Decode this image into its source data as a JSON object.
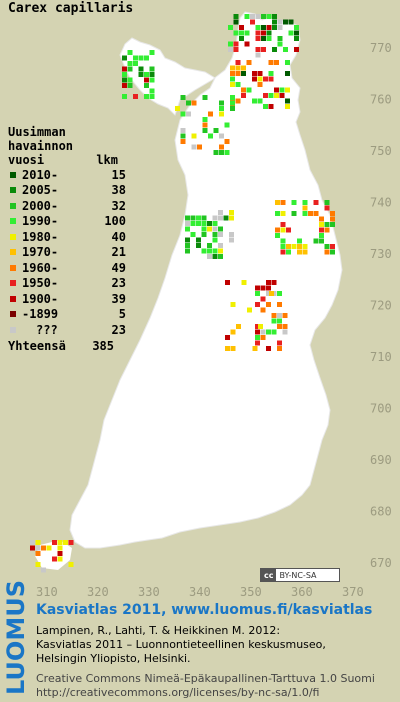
{
  "species": "Carex capillaris",
  "legend": {
    "heading_line1": "Uusimman",
    "heading_line2": "havainnon",
    "heading_col1": "vuosi",
    "heading_col2": "lkm",
    "rows": [
      {
        "label": "2010-",
        "count": "15",
        "color": "#005a00"
      },
      {
        "label": "2005-",
        "count": "38",
        "color": "#0a8a0a"
      },
      {
        "label": "2000-",
        "count": "32",
        "color": "#22c422"
      },
      {
        "label": "1990-",
        "count": "100",
        "color": "#33ee33"
      },
      {
        "label": "1980-",
        "count": "40",
        "color": "#f0f000"
      },
      {
        "label": "1970-",
        "count": "21",
        "color": "#ffc000"
      },
      {
        "label": "1960-",
        "count": "49",
        "color": "#ff7a00"
      },
      {
        "label": "1950-",
        "count": "23",
        "color": "#e82020"
      },
      {
        "label": "1900-",
        "count": "39",
        "color": "#c00000"
      },
      {
        "label": "-1899",
        "count": "5",
        "color": "#7a0000"
      },
      {
        "label": "???",
        "count": "23",
        "color": "#c8c8c8"
      }
    ],
    "total_label": "Yhteensä",
    "total_count": "385"
  },
  "axes": {
    "y_ticks": [
      "770",
      "760",
      "750",
      "740",
      "730",
      "720",
      "710",
      "700",
      "690",
      "680",
      "670"
    ],
    "x_ticks": [
      "310",
      "320",
      "330",
      "340",
      "350",
      "360",
      "370"
    ]
  },
  "license_badge": {
    "cc": "cc",
    "text": "BY-NC-SA"
  },
  "footer": {
    "logo": "LUOMUS",
    "title": "Kasviatlas 2011, www.luomus.fi/kasviatlas",
    "ref_line1": "Lampinen, R., Lahti, T. & Heikkinen M. 2012:",
    "ref_line2": "Kasviatlas 2011 – Luonnontieteellinen keskusmuseo,",
    "ref_line3": "Helsingin Yliopisto, Helsinki.",
    "license_line1": "Creative Commons Nimeä-Epäkaupallinen-Tarttuva 1.0 Suomi",
    "license_line2": "http://creativecommons.org/licenses/by-nc-sa/1.0/fi"
  },
  "colors": {
    "background": "#d4d3b2",
    "land": "#ffffff",
    "axis_labels": "#9c9b80",
    "title_blue": "#1a76c6"
  }
}
